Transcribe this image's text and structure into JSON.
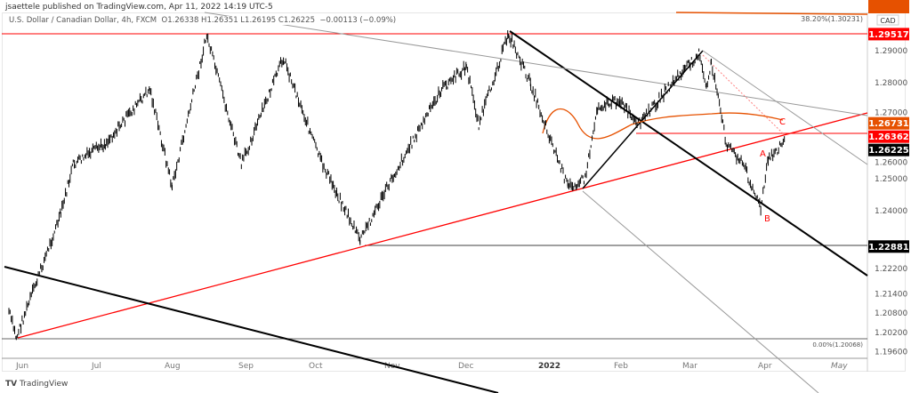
{
  "header": {
    "published": "jsaettele published on TradingView.com, Apr 11, 2022 14:19 UTC-5",
    "symbol": "U.S. Dollar / Canadian Dollar, 4h, FXCM",
    "ohlc": "O1.26338  H1.26351  L1.26195  C1.26225",
    "change": "−0.00113 (−0.09%)"
  },
  "footer": {
    "brand": "TradingView"
  },
  "colors": {
    "price": "#000000",
    "red": "#ff0000",
    "orange": "#e65100",
    "gray": "#9e9e9e"
  },
  "chart_data": {
    "type": "candlestick",
    "currency_tag": "CAD",
    "x_ticks": [
      "Jun",
      "Jul",
      "Aug",
      "Sep",
      "Oct",
      "Nov",
      "Dec",
      "2022",
      "Feb",
      "Mar",
      "Apr",
      "May"
    ],
    "y_ticks": [
      1.29,
      1.28,
      1.27,
      1.26,
      1.25,
      1.24,
      1.222,
      1.214,
      1.208,
      1.202,
      1.196
    ],
    "y_tick_labels": [
      "1.29000",
      "1.28000",
      "1.27000",
      "1.26000",
      "1.25000",
      "1.24000",
      "1.22200",
      "1.21400",
      "1.20800",
      "1.20200",
      "1.19600"
    ],
    "price_swings": [
      [
        "2021-06-01",
        1.2086
      ],
      [
        "2021-06-04",
        1.2003
      ],
      [
        "2021-06-22",
        1.239
      ],
      [
        "2021-06-27",
        1.2544
      ],
      [
        "2021-07-10",
        1.261
      ],
      [
        "2021-07-28",
        1.278
      ],
      [
        "2021-08-06",
        1.2475
      ],
      [
        "2021-08-20",
        1.2947
      ],
      [
        "2021-09-03",
        1.2544
      ],
      [
        "2021-09-20",
        1.2878
      ],
      [
        "2021-10-05",
        1.2558
      ],
      [
        "2021-10-21",
        1.2308
      ],
      [
        "2021-11-03",
        1.2503
      ],
      [
        "2021-11-23",
        1.278
      ],
      [
        "2021-12-03",
        1.285
      ],
      [
        "2021-12-08",
        1.267
      ],
      [
        "2021-12-20",
        1.2953
      ],
      [
        "2021-12-29",
        1.2794
      ],
      [
        "2022-01-13",
        1.2475
      ],
      [
        "2022-01-20",
        1.25
      ],
      [
        "2022-01-25",
        1.2725
      ],
      [
        "2022-02-03",
        1.2745
      ],
      [
        "2022-02-10",
        1.2665
      ],
      [
        "2022-02-25",
        1.2805
      ],
      [
        "2022-03-07",
        1.289
      ],
      [
        "2022-03-10",
        1.278
      ],
      [
        "2022-03-12",
        1.2865
      ],
      [
        "2022-03-18",
        1.2614
      ],
      [
        "2022-03-25",
        1.2545
      ],
      [
        "2022-04-01",
        1.2406
      ],
      [
        "2022-04-04",
        1.2558
      ],
      [
        "2022-04-11",
        1.26225
      ]
    ],
    "price_labels": [
      {
        "text": "1.29517",
        "value": 1.29517,
        "color": "#ff0000"
      },
      {
        "text": "1.26731",
        "value": 1.26731,
        "color": "#e65100"
      },
      {
        "text": "1.26362",
        "value": 1.26362,
        "color": "#ff0000"
      },
      {
        "text": "1.26225",
        "value": 1.26225,
        "color": "#000000"
      },
      {
        "text": "1.22881",
        "value": 1.22881,
        "color": "#000000"
      }
    ],
    "fib_labels": [
      "38.20%(1.30231)",
      "0.00%(1.20068)"
    ],
    "wave_labels": [
      "A",
      "B",
      "C"
    ]
  }
}
